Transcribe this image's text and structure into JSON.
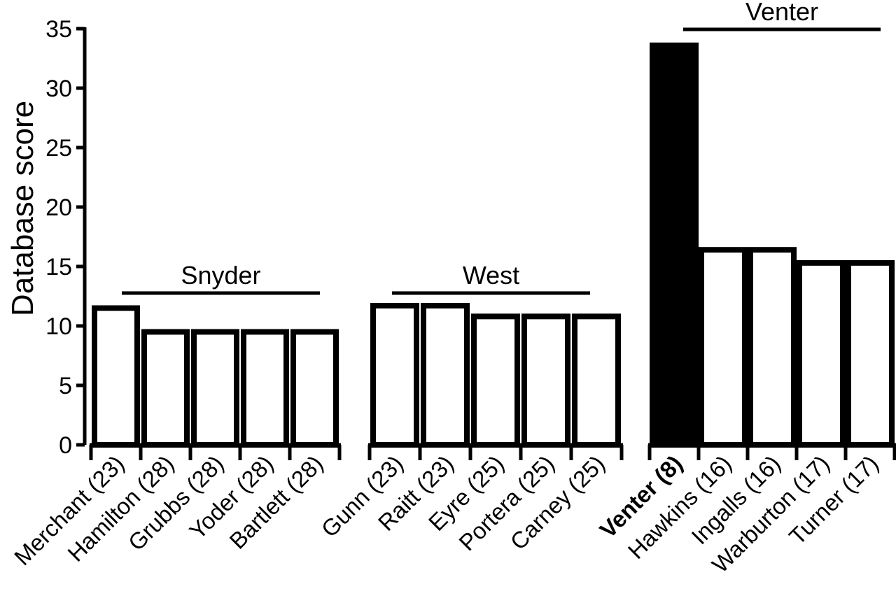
{
  "chart_data": {
    "type": "bar",
    "title": "",
    "xlabel": "",
    "ylabel": "Database score",
    "ylim": [
      0,
      35
    ],
    "yticks": [
      0,
      5,
      10,
      15,
      20,
      25,
      30,
      35
    ],
    "grid": false,
    "legend": "none",
    "groups": [
      {
        "name": "Snyder",
        "bars": [
          {
            "label": "Merchant (23)",
            "value": 11.5,
            "fill": "#ffffff"
          },
          {
            "label": "Hamilton (28)",
            "value": 9.5,
            "fill": "#ffffff"
          },
          {
            "label": "Grubbs (28)",
            "value": 9.5,
            "fill": "#ffffff"
          },
          {
            "label": "Yoder (28)",
            "value": 9.5,
            "fill": "#ffffff"
          },
          {
            "label": "Bartlett (28)",
            "value": 9.5,
            "fill": "#ffffff"
          }
        ]
      },
      {
        "name": "West",
        "bars": [
          {
            "label": "Gunn (23)",
            "value": 11.7,
            "fill": "#ffffff"
          },
          {
            "label": "Raitt (23)",
            "value": 11.7,
            "fill": "#ffffff"
          },
          {
            "label": "Eyre (25)",
            "value": 10.8,
            "fill": "#ffffff"
          },
          {
            "label": "Portera (25)",
            "value": 10.8,
            "fill": "#ffffff"
          },
          {
            "label": "Carney (25)",
            "value": 10.8,
            "fill": "#ffffff"
          }
        ]
      },
      {
        "name": "Venter",
        "bars": [
          {
            "label": "Venter (8)",
            "value": 33.6,
            "fill": "#000000",
            "bold": true
          },
          {
            "label": "Hawkins (16)",
            "value": 16.4,
            "fill": "#ffffff"
          },
          {
            "label": "Ingalls (16)",
            "value": 16.4,
            "fill": "#ffffff"
          },
          {
            "label": "Warburton (17)",
            "value": 15.3,
            "fill": "#ffffff"
          },
          {
            "label": "Turner (17)",
            "value": 15.3,
            "fill": "#ffffff"
          }
        ]
      }
    ]
  }
}
